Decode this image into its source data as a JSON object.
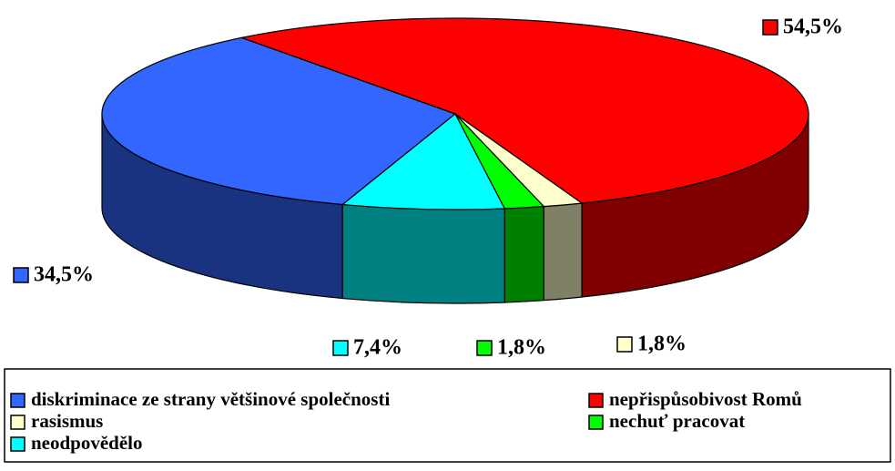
{
  "chart_data": {
    "type": "pie3d",
    "categories": [
      "diskriminace ze strany většinové společnosti",
      "nepřispůsobivost Romů",
      "rasismus",
      "nechuť pracovat",
      "neodpovědělo"
    ],
    "values": [
      34.5,
      54.5,
      1.8,
      1.8,
      7.4
    ],
    "value_labels": [
      "34,5%",
      "54,5%",
      "1,8%",
      "1,8%",
      "7,4%"
    ],
    "colors": [
      "#3366ff",
      "#ff0000",
      "#ffffcc",
      "#00ff00",
      "#00ffff"
    ],
    "legend": "bottom"
  }
}
